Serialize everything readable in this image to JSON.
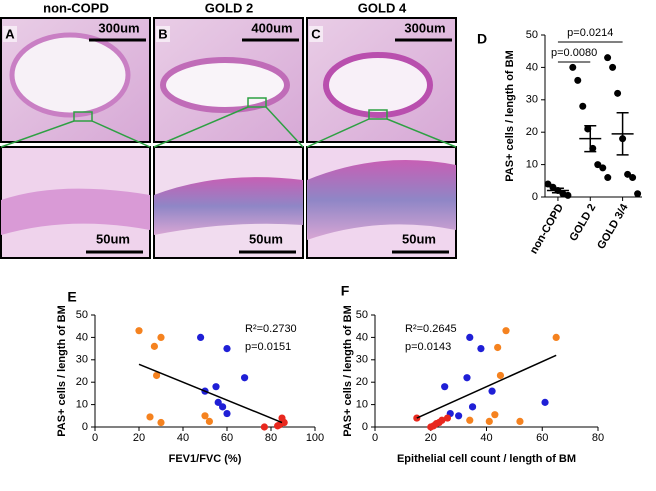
{
  "images": {
    "panels": [
      {
        "label": "A",
        "title": "non-COPD",
        "scale_top": "300um",
        "scale_bottom": "50um"
      },
      {
        "label": "B",
        "title": "GOLD 2",
        "scale_top": "400um",
        "scale_bottom": "50um"
      },
      {
        "label": "C",
        "title": "GOLD 4",
        "scale_top": "300um",
        "scale_bottom": "50um"
      }
    ]
  },
  "chart_data": [
    {
      "type": "dot",
      "panel_label": "D",
      "ylabel": "PAS+ cells / length of BM",
      "categories": [
        "non-COPD",
        "GOLD 2",
        "GOLD 3/4"
      ],
      "values": [
        [
          4,
          3,
          2,
          1,
          0.5
        ],
        [
          40,
          36,
          28,
          21,
          15,
          10,
          9,
          6
        ],
        [
          43,
          40,
          32,
          18,
          7,
          6,
          1
        ]
      ],
      "means": [
        2,
        18,
        19.5
      ],
      "sems": [
        0.7,
        4,
        6.5
      ],
      "annotations": [
        "p=0.0214",
        "p=0.0080"
      ],
      "ylim": [
        0,
        50
      ],
      "yticks": [
        0,
        10,
        20,
        30,
        40,
        50
      ],
      "color": "#000000"
    },
    {
      "type": "scatter",
      "panel_label": "E",
      "xlabel": "FEV1/FVC (%)",
      "ylabel": "PAS+ cells / length of BM",
      "annotations": [
        "R²=0.2730",
        "p=0.0151"
      ],
      "series": [
        {
          "color": "#f5821f",
          "x": [
            20,
            27,
            30,
            28,
            25,
            30,
            50,
            52
          ],
          "y": [
            43,
            36,
            40,
            23,
            4.5,
            2,
            5,
            2.5
          ]
        },
        {
          "color": "#1f1fd6",
          "x": [
            48,
            60,
            68,
            50,
            55,
            56,
            58,
            60
          ],
          "y": [
            40,
            35,
            22,
            16,
            18,
            11,
            9,
            6
          ]
        },
        {
          "color": "#e8281e",
          "x": [
            77,
            84,
            85,
            86,
            83
          ],
          "y": [
            0,
            1,
            4,
            2,
            0.5
          ]
        }
      ],
      "fit": {
        "x": [
          20,
          85
        ],
        "y": [
          28,
          2
        ]
      },
      "xlim": [
        0,
        100
      ],
      "xticks": [
        0,
        20,
        40,
        60,
        80,
        100
      ],
      "ylim": [
        0,
        50
      ],
      "yticks": [
        0,
        10,
        20,
        30,
        40,
        50
      ]
    },
    {
      "type": "scatter",
      "panel_label": "F",
      "xlabel": "Epithelial cell count / length of BM",
      "ylabel": "PAS+ cells / length of BM",
      "annotations": [
        "R²=0.2645",
        "p=0.0143"
      ],
      "series": [
        {
          "color": "#f5821f",
          "x": [
            47,
            44,
            65,
            45,
            43,
            41,
            52,
            34
          ],
          "y": [
            43,
            35.5,
            40,
            23,
            5.5,
            2.5,
            2.5,
            3
          ]
        },
        {
          "color": "#1f1fd6",
          "x": [
            34,
            38,
            33,
            25,
            42,
            61,
            35,
            27,
            30
          ],
          "y": [
            40,
            35,
            22,
            18,
            16,
            11,
            9,
            6,
            5
          ]
        },
        {
          "color": "#e8281e",
          "x": [
            15,
            20,
            21,
            22,
            24,
            26,
            23
          ],
          "y": [
            4,
            0,
            0.5,
            1.5,
            3,
            4,
            2
          ]
        }
      ],
      "fit": {
        "x": [
          15,
          65
        ],
        "y": [
          4,
          32
        ]
      },
      "xlim": [
        0,
        80
      ],
      "xticks": [
        0,
        20,
        40,
        60,
        80
      ],
      "ylim": [
        0,
        50
      ],
      "yticks": [
        0,
        10,
        20,
        30,
        40,
        50
      ]
    }
  ]
}
